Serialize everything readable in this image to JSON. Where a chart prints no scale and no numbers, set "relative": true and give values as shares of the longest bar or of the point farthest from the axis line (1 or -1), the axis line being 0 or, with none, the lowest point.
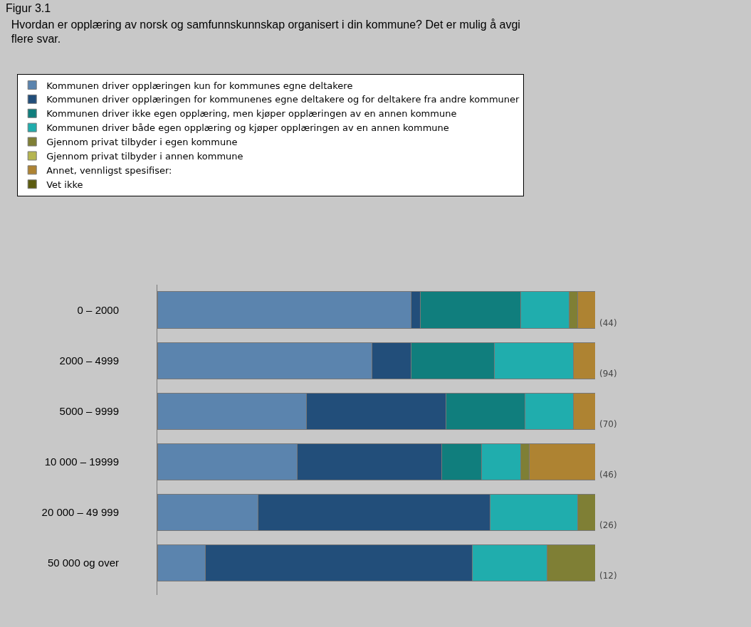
{
  "chart_data": {
    "type": "bar",
    "orientation": "horizontal",
    "stacked": true,
    "relative": true,
    "title": "Hvordan er opplæring av norsk og samfunnskunnskap organisert i din kommune? Det er mulig å avgi flere svar.",
    "categories": [
      "0 – 2000",
      "2000 – 4999",
      "5000 – 9999",
      "10 000 – 19999",
      "20 000 – 49 999",
      "50 000 og over"
    ],
    "series": [
      {
        "name": "Kommunen driver opplæringen kun for kommunes egne deltakere",
        "color": "#5b84ae",
        "values": [
          0.58,
          0.49,
          0.34,
          0.32,
          0.23,
          0.11
        ]
      },
      {
        "name": "Kommunen driver opplæringen for kommunenes egne deltakere og for deltakere fra andre kommuner",
        "color": "#224e7a",
        "values": [
          0.02,
          0.09,
          0.32,
          0.33,
          0.53,
          0.61
        ]
      },
      {
        "name": "Kommunen driver ikke egen opplæring, men kjøper opplæringen av en annen kommune",
        "color": "#107e7d",
        "values": [
          0.23,
          0.19,
          0.18,
          0.09,
          null,
          null
        ]
      },
      {
        "name": "Kommunen driver både egen opplæring og kjøper opplæringen av en annen kommune",
        "color": "#20adad",
        "values": [
          0.11,
          0.18,
          0.11,
          0.09,
          0.2,
          0.17
        ]
      },
      {
        "name": "Gjennom privat tilbyder i egen kommune",
        "color": "#7f7f35",
        "values": [
          0.02,
          null,
          null,
          0.02,
          0.04,
          0.11
        ]
      },
      {
        "name": "Gjennom privat tilbyder i annen kommune",
        "color": "#b5b550",
        "values": [
          null,
          null,
          null,
          null,
          null,
          null
        ]
      },
      {
        "name": "Annet, vennligst spesifiser:",
        "color": "#ae8332",
        "values": [
          0.04,
          0.05,
          0.05,
          0.15,
          null,
          null
        ]
      },
      {
        "name": "Vet ikke",
        "color": "#5c5c10",
        "values": [
          null,
          null,
          null,
          null,
          null,
          null
        ]
      }
    ],
    "annotations": [
      "(44)",
      "(94)",
      "(70)",
      "(46)",
      "(26)",
      "(12)",
      "Figur 3.1"
    ],
    "legend": "top left"
  }
}
